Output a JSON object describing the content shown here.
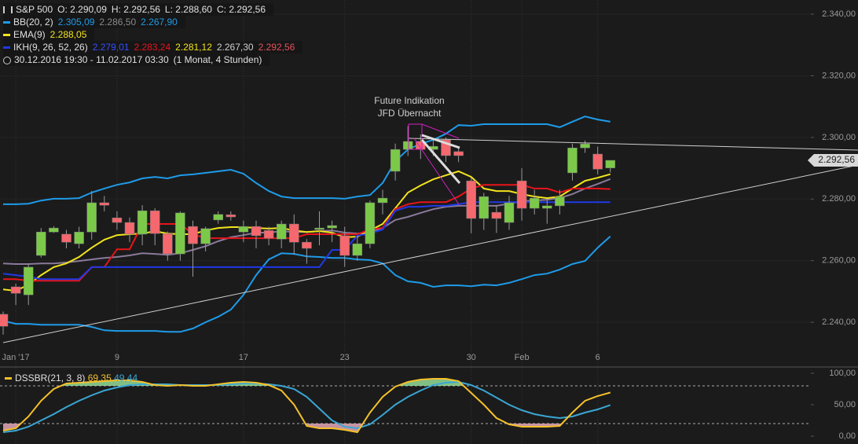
{
  "header": {
    "symbol": "S&P 500",
    "ohlc": [
      "O: 2.290,09",
      "H: 2.292,56",
      "L: 2.288,60",
      "C: 2.292,56"
    ],
    "indicators": [
      {
        "name": "BB(20, 2)",
        "color": "#1e9be9",
        "values": [
          "2.305,09",
          "2.286,50",
          "2.267,90"
        ],
        "value_colors": [
          "#1e9be9",
          "#8a8a8a",
          "#1e9be9"
        ]
      },
      {
        "name": "EMA(9)",
        "color": "#f2e41c",
        "values": [
          "2.288,05"
        ],
        "value_colors": [
          "#f2e41c"
        ]
      },
      {
        "name": "IKH(9, 26, 52, 26)",
        "color": "#2038e8",
        "values": [
          "2.279,01",
          "2.283,24",
          "2.281,12",
          "2.267,30",
          "2.292,56"
        ],
        "value_colors": [
          "#3550ff",
          "#e8141a",
          "#f2e41c",
          "#d0d0d0",
          "#e8505a"
        ]
      }
    ],
    "period": "30.12.2016 19:30 - 11.02.2017 03:30",
    "interval": "(1 Monat, 4 Stunden)"
  },
  "chart_data": [
    {
      "type": "candlestick",
      "categories": [
        null,
        "Jan '17",
        null,
        null,
        null,
        null,
        null,
        null,
        null,
        "9",
        null,
        null,
        null,
        null,
        null,
        null,
        null,
        null,
        null,
        "17",
        null,
        null,
        null,
        null,
        null,
        null,
        null,
        "23",
        null,
        null,
        null,
        null,
        null,
        null,
        null,
        null,
        null,
        "30",
        null,
        null,
        null,
        "Feb",
        null,
        null,
        null,
        null,
        null,
        "6",
        null
      ],
      "open": [
        2242.6,
        2251.5,
        2248.9,
        2261.7,
        2269.3,
        2268.6,
        2265.5,
        2269.3,
        2278.8,
        2273.9,
        2272.4,
        2268.6,
        2276.2,
        2268.8,
        2262.2,
        2271.1,
        2265.5,
        2273.2,
        2274.9,
        2269.3,
        2271.1,
        2269.8,
        2267.0,
        2271.9,
        2266.0,
        2270.1,
        2270.6,
        2268.1,
        2261.7,
        2265.5,
        2278.8,
        2289.0,
        2296.1,
        2298.7,
        2296.1,
        2299.2,
        2295.4,
        2285.9,
        2273.7,
        2275.7,
        2272.4,
        2285.9,
        2277.0,
        2277.0,
        2277.8,
        2288.5,
        2296.6,
        2294.6,
        2290.09
      ],
      "high": [
        2243.5,
        2252.5,
        2259.0,
        2270.6,
        2271.2,
        2270.0,
        2271.0,
        2282.6,
        2281.0,
        2276.0,
        2274.0,
        2278.0,
        2277.0,
        2269.5,
        2276.0,
        2273.0,
        2271.0,
        2276.0,
        2276.0,
        2273.0,
        2273.0,
        2271.0,
        2273.0,
        2275.0,
        2267.0,
        2276.0,
        2273.0,
        2271.0,
        2268.0,
        2279.5,
        2283.0,
        2298.0,
        2303.7,
        2301.0,
        2299.0,
        2300.0,
        2297.0,
        2287.0,
        2282.0,
        2278.0,
        2281.0,
        2290.0,
        2283.0,
        2280.0,
        2283.0,
        2298.0,
        2299.0,
        2297.0,
        2292.56
      ],
      "low": [
        2236.0,
        2245.6,
        2245.6,
        2261.0,
        2269.0,
        2264.0,
        2264.0,
        2266.8,
        2276.0,
        2270.0,
        2266.0,
        2265.0,
        2265.0,
        2260.0,
        2260.0,
        2254.8,
        2263.0,
        2272.0,
        2273.0,
        2266.0,
        2264.0,
        2265.0,
        2264.0,
        2262.0,
        2259.0,
        2265.0,
        2266.0,
        2258.0,
        2260.0,
        2264.0,
        2275.0,
        2286.0,
        2294.0,
        2293.0,
        2294.0,
        2292.0,
        2292.0,
        2268.9,
        2270.0,
        2269.0,
        2270.0,
        2273.0,
        2275.0,
        2272.0,
        2275.0,
        2286.0,
        2295.0,
        2288.0,
        2288.6
      ],
      "close": [
        2238.7,
        2249.4,
        2257.9,
        2269.3,
        2270.6,
        2266.0,
        2269.3,
        2278.8,
        2278.0,
        2272.4,
        2268.6,
        2276.2,
        2268.8,
        2262.2,
        2275.5,
        2265.5,
        2270.4,
        2275.0,
        2274.2,
        2271.1,
        2268.1,
        2267.3,
        2271.9,
        2266.0,
        2264.0,
        2270.6,
        2271.4,
        2261.7,
        2265.5,
        2278.8,
        2280.3,
        2296.1,
        2298.7,
        2296.1,
        2297.1,
        2294.1,
        2294.1,
        2273.7,
        2280.8,
        2273.7,
        2278.8,
        2277.0,
        2280.3,
        2277.8,
        2280.8,
        2296.6,
        2297.9,
        2289.7,
        2292.56
      ],
      "up_color": "#7cc94a",
      "down_color": "#f4686e",
      "series": [
        {
          "color": "#1e9be9",
          "values": [
            2278.3,
            2278.3,
            2278.5,
            2279.5,
            2280.1,
            2280.1,
            2280.3,
            2282.1,
            2283.4,
            2284.6,
            2285.4,
            2286.7,
            2287.2,
            2286.7,
            2287.7,
            2288.0,
            2288.5,
            2289.0,
            2289.5,
            2288.2,
            2285.2,
            2282.6,
            2280.8,
            2280.3,
            2280.3,
            2280.3,
            2280.3,
            2280.1,
            2280.8,
            2281.3,
            2285.2,
            2292.3,
            2296.1,
            2297.9,
            2299.2,
            2301.2,
            2304.0,
            2303.8,
            2304.3,
            2304.3,
            2304.3,
            2304.3,
            2304.3,
            2304.3,
            2303.3,
            2305.1,
            2306.8,
            2305.8,
            2305.09
          ]
        },
        {
          "color": "#8a7a9a",
          "values": [
            2259.1,
            2258.9,
            2258.9,
            2259.1,
            2259.1,
            2259.4,
            2259.9,
            2260.4,
            2260.9,
            2261.2,
            2261.7,
            2262.4,
            2262.2,
            2261.9,
            2262.4,
            2263.5,
            2264.7,
            2266.3,
            2267.6,
            2268.3,
            2269.1,
            2269.1,
            2269.6,
            2269.3,
            2269.3,
            2269.6,
            2269.8,
            2269.1,
            2268.8,
            2269.3,
            2270.6,
            2273.2,
            2274.2,
            2275.5,
            2276.7,
            2277.5,
            2277.8,
            2277.8,
            2277.8,
            2277.8,
            2278.5,
            2279.3,
            2279.5,
            2279.8,
            2280.3,
            2281.6,
            2283.4,
            2284.9,
            2286.5
          ]
        },
        {
          "color": "#1e9be9",
          "values": [
            2240.5,
            2239.5,
            2239.5,
            2239.2,
            2239.2,
            2239.2,
            2239.2,
            2238.5,
            2237.4,
            2237.2,
            2237.2,
            2237.2,
            2237.2,
            2236.9,
            2236.9,
            2238.0,
            2240.0,
            2241.8,
            2244.1,
            2248.9,
            2255.3,
            2260.4,
            2262.4,
            2262.2,
            2261.4,
            2261.2,
            2260.9,
            2260.9,
            2260.4,
            2260.2,
            2259.1,
            2255.3,
            2253.3,
            2252.8,
            2251.5,
            2252.0,
            2252.0,
            2251.7,
            2252.2,
            2252.0,
            2252.8,
            2254.0,
            2255.3,
            2255.8,
            2257.1,
            2258.9,
            2259.9,
            2264.2,
            2267.9
          ]
        },
        {
          "color": "#f2e41c",
          "values": [
            2250.7,
            2250.2,
            2252.2,
            2255.3,
            2257.9,
            2259.1,
            2261.2,
            2264.2,
            2266.8,
            2268.3,
            2268.6,
            2268.8,
            2269.6,
            2268.8,
            2268.6,
            2268.6,
            2269.8,
            2270.6,
            2270.9,
            2270.9,
            2270.6,
            2270.4,
            2270.6,
            2269.8,
            2269.3,
            2269.6,
            2269.1,
            2267.6,
            2267.8,
            2269.8,
            2271.9,
            2277.0,
            2282.1,
            2284.4,
            2286.4,
            2287.7,
            2289.0,
            2287.2,
            2283.4,
            2282.6,
            2282.6,
            2281.6,
            2280.8,
            2280.3,
            2280.8,
            2283.4,
            2285.9,
            2286.9,
            2288.05
          ]
        },
        {
          "color": "#e8141a",
          "values": [
            2254.0,
            2254.0,
            2253.5,
            2253.5,
            2253.5,
            2253.5,
            2253.5,
            2257.9,
            2257.9,
            2263.7,
            2263.7,
            2271.9,
            2271.9,
            2271.9,
            2271.9,
            2268.6,
            2267.3,
            2267.3,
            2267.3,
            2267.3,
            2267.3,
            2267.3,
            2267.3,
            2267.3,
            2268.6,
            2268.6,
            2268.6,
            2268.6,
            2268.6,
            2270.1,
            2270.6,
            2276.7,
            2278.3,
            2279.0,
            2279.0,
            2279.0,
            2280.8,
            2283.4,
            2284.6,
            2284.6,
            2284.6,
            2284.6,
            2283.4,
            2283.4,
            2282.1,
            2283.4,
            2283.4,
            2283.4,
            2283.24
          ]
        },
        {
          "color": "#2038e8",
          "values": [
            2255.8,
            2255.3,
            2254.8,
            2254.0,
            2254.0,
            2254.0,
            2254.0,
            2257.9,
            2257.9,
            2257.9,
            2257.9,
            2257.9,
            2257.9,
            2257.9,
            2257.9,
            2257.9,
            2257.9,
            2257.9,
            2257.9,
            2257.9,
            2257.9,
            2257.9,
            2257.9,
            2257.9,
            2257.9,
            2257.9,
            2263.5,
            2263.5,
            2268.1,
            2268.8,
            2270.1,
            2276.2,
            2277.5,
            2277.5,
            2277.8,
            2277.8,
            2278.3,
            2279.0,
            2279.0,
            2279.0,
            2279.0,
            2279.0,
            2279.0,
            2279.0,
            2279.0,
            2279.0,
            2279.0,
            2279.0,
            2279.01
          ]
        }
      ],
      "price_marker": {
        "value": 2292.56,
        "label": "2.292,56"
      },
      "annotations": [
        "Future Indikation",
        "JFD Übernacht"
      ],
      "ylim": [
        2226,
        2344.6
      ],
      "yticks": [
        {
          "value": 2240,
          "label": "2.240,00"
        },
        {
          "value": 2260,
          "label": "2.260,00"
        },
        {
          "value": 2280,
          "label": "2.280,00"
        },
        {
          "value": 2300,
          "label": "2.300,00"
        },
        {
          "value": 2320,
          "label": "2.320,00"
        },
        {
          "value": 2340,
          "label": "2.340,00"
        }
      ],
      "grid": true
    },
    {
      "type": "line",
      "title": "DSSBR(21, 3, 8)",
      "legend_values": [
        "69,35",
        "49,44"
      ],
      "series": [
        {
          "color": "#f5c02a",
          "values": [
            8.8,
            12.5,
            31.3,
            56.3,
            75,
            83.8,
            85,
            86.3,
            87.5,
            88.8,
            88.8,
            86.3,
            81.3,
            80,
            81.3,
            80,
            80,
            82.5,
            85,
            86.3,
            85,
            81.3,
            72.5,
            50,
            16.3,
            12.5,
            12.5,
            10,
            6.3,
            37.5,
            62.5,
            78.8,
            86.3,
            90,
            91.3,
            91.3,
            87.5,
            68.8,
            50,
            28.8,
            18.8,
            15,
            15,
            15,
            16.3,
            37.5,
            56.3,
            63.8,
            69.35
          ]
        },
        {
          "color": "#3aa6d4",
          "values": [
            6.3,
            8.8,
            15,
            25,
            35,
            46.3,
            56.3,
            65,
            72.5,
            77.5,
            81.3,
            82.5,
            82.5,
            82.5,
            81.3,
            81.3,
            81.3,
            81.3,
            82.5,
            83.8,
            83.8,
            82.5,
            80,
            75,
            62.5,
            43.8,
            25,
            15,
            12.5,
            18.8,
            33.8,
            50,
            62.5,
            72.5,
            81.3,
            85,
            86.3,
            81.3,
            72.5,
            61.3,
            50,
            41.3,
            35,
            31.3,
            28.8,
            31.3,
            37.5,
            42.5,
            49.44
          ]
        }
      ],
      "levels": [
        80,
        20
      ],
      "fill_colors": [
        "#9be8a0",
        "#f0b0c0"
      ],
      "ylim": [
        -12.5,
        110
      ],
      "yticks": [
        {
          "value": 0,
          "label": "0,00"
        },
        {
          "value": 50,
          "label": "50,00"
        },
        {
          "value": 100,
          "label": "100,00"
        }
      ]
    }
  ]
}
